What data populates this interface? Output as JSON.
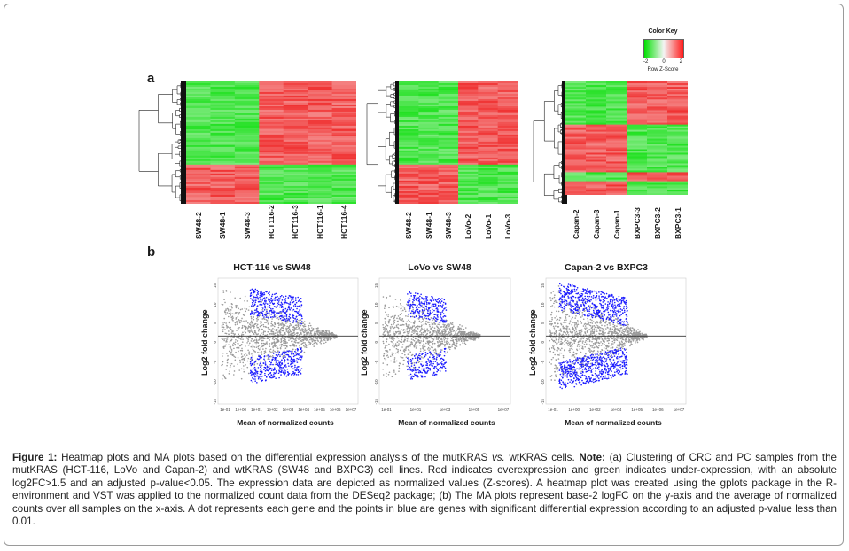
{
  "panel_labels": {
    "a": "a",
    "b": "b"
  },
  "heatmaps": [
    {
      "columns": [
        "SW48-2",
        "SW48-1",
        "SW48-3",
        "HCT116-2",
        "HCT116-3",
        "HCT116-1",
        "HCT116-4"
      ],
      "blocks": [
        {
          "rows": 0.68,
          "pattern": [
            "g",
            "g",
            "g",
            "r",
            "r",
            "r",
            "r"
          ]
        },
        {
          "rows": 0.32,
          "pattern": [
            "r",
            "r",
            "r",
            "g",
            "g",
            "g",
            "g"
          ]
        }
      ]
    },
    {
      "columns": [
        "SW48-2",
        "SW48-1",
        "SW48-3",
        "LoVo-2",
        "LoVo-1",
        "LoVo-3"
      ],
      "blocks": [
        {
          "rows": 0.68,
          "pattern": [
            "g",
            "g",
            "g",
            "r",
            "r",
            "r"
          ]
        },
        {
          "rows": 0.32,
          "pattern": [
            "r",
            "r",
            "r",
            "g",
            "g",
            "g"
          ]
        }
      ]
    },
    {
      "columns": [
        "Capan-2",
        "Capan-3",
        "Capan-1",
        "BXPC3-3",
        "BXPC3-2",
        "BXPC3-1"
      ],
      "blocks": [
        {
          "rows": 0.38,
          "pattern": [
            "g",
            "g",
            "g",
            "r",
            "r",
            "r"
          ]
        },
        {
          "rows": 0.42,
          "pattern": [
            "r",
            "r",
            "r",
            "g",
            "g",
            "g"
          ]
        },
        {
          "rows": 0.08,
          "pattern": [
            "g",
            "g",
            "g",
            "r",
            "r",
            "r"
          ]
        },
        {
          "rows": 0.12,
          "pattern": [
            "r",
            "r",
            "r",
            "g",
            "g",
            "g"
          ]
        }
      ]
    }
  ],
  "color_key": {
    "title": "Color Key",
    "ticks": [
      "-2",
      "0",
      "2"
    ],
    "label": "Row Z-Score",
    "colors": {
      "low": "#00e000",
      "mid": "#f4f4f4",
      "high": "#ff1a1a"
    }
  },
  "ma_plots": [
    {
      "title": "HCT-116 vs SW48",
      "x_ticks": [
        "1e-01",
        "1e+00",
        "1e+01",
        "1e+02",
        "1e+03",
        "1e+04",
        "1e+05",
        "1e+06",
        "1e+07"
      ]
    },
    {
      "title": "LoVo vs SW48",
      "x_ticks": [
        "1e-01",
        "1e+01",
        "1e+03",
        "1e+05",
        "1e+07"
      ]
    },
    {
      "title": "Capan-2 vs BXPC3",
      "x_ticks": [
        "1e-01",
        "1e+00",
        "1e+02",
        "1e+04",
        "1e+05",
        "1e+06",
        "1e+07"
      ]
    }
  ],
  "ma_common": {
    "ylabel": "Log2 fold change",
    "xlabel": "Mean of normalized counts",
    "y_ticks": [
      "15",
      "10",
      "5",
      "0",
      "-5",
      "-10",
      "-15"
    ],
    "colors": {
      "nonsig": "#9a9a9a",
      "sig": "#1c1cff"
    }
  },
  "caption": {
    "label": "Figure 1:",
    "text1": " Heatmap plots and MA plots based on the differential expression analysis of the mutKRAS ",
    "vs": "vs.",
    "text2": " wtKRAS cells. ",
    "note_label": "Note:",
    "text3": " (a) Clustering of CRC and PC samples from the mutKRAS (HCT-116, LoVo and Capan-2) and wtKRAS (SW48 and BXPC3) cell lines. Red indicates overexpression and green indicates under-expression, with an absolute log2FC>1.5 and an adjusted p-value<0.05. The expression data are depicted as normalized values (Z-scores). A heatmap plot was created using the gplots package in the R-environment and VST was applied to the normalized count data from the DESeq2 package; (b) The MA plots represent base-2 logFC on the y-axis and the average of normalized counts over all samples on the x-axis. A dot represents each gene and the points in blue are genes with significant differential expression according to an adjusted p-value less than 0.01."
  }
}
